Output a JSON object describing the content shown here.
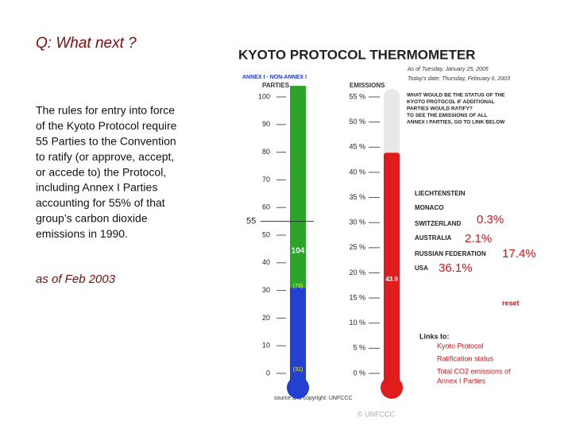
{
  "slide": {
    "question": "Q:  What next ?",
    "paragraph": [
      "The rules for entry into force",
      "of the Kyoto Protocol require",
      "55 Parties to the Convention",
      "to ratify (or approve, accept,",
      "or accede to) the Protocol,",
      "including Annex I Parties",
      "accounting for 55% of that",
      "group’s carbon dioxide",
      "emissions in 1990."
    ],
    "as_of": "as of Feb 2003"
  },
  "thermometer": {
    "title": "KYOTO PROTOCOL THERMOMETER",
    "dates": [
      "As of Tuesday, January 25, 2005",
      "Today's date: Thursday, February 6, 2003"
    ],
    "legend": "ANNEX I · NON-ANNEX I",
    "parties_label": "PARTIES",
    "emissions_label": "EMISSIONS",
    "party_ticks": [
      0,
      10,
      20,
      30,
      40,
      50,
      60,
      70,
      80,
      90,
      100
    ],
    "emission_ticks": [
      {
        "value": 0,
        "label": "0 %"
      },
      {
        "value": 5,
        "label": "5 %"
      },
      {
        "value": 10,
        "label": "10 %"
      },
      {
        "value": 15,
        "label": "15 %"
      },
      {
        "value": 20,
        "label": "20 %"
      },
      {
        "value": 25,
        "label": "25 %"
      },
      {
        "value": 30,
        "label": "30 %"
      },
      {
        "value": 35,
        "label": "35 %"
      },
      {
        "value": 40,
        "label": "40 %"
      },
      {
        "value": 45,
        "label": "45 %"
      },
      {
        "value": 50,
        "label": "50 %"
      },
      {
        "value": 55,
        "label": "55 %"
      }
    ],
    "threshold": 55,
    "parties_total": 104,
    "annex_parties": 31,
    "annex_parties_label": "(31)",
    "non_annex_parties": 73,
    "non_annex_parties_label": "(73)",
    "emissions": 43.9
  },
  "panel": {
    "question": [
      "WHAT WOULD BE THE STATUS OF THE",
      "KYOTO PROTOCOL IF ADDITIONAL",
      "PARTIES WOULD RATIFY?",
      "TO SEE THE EMISSIONS OF ALL",
      "ANNEX I PARTIES, GO TO LINK BELOW"
    ],
    "countries": [
      "LIECHTENSTEIN",
      "MONACO",
      "SWITZERLAND",
      "AUSTRALIA",
      "RUSSIAN FEDERATION",
      "USA"
    ],
    "shares": [
      {
        "value": 0.3,
        "label": "0.3%"
      },
      {
        "value": 2.1,
        "label": "2.1%"
      },
      {
        "value": 17.4,
        "label": "17.4%"
      },
      {
        "value": 36.1,
        "label": "36.1%"
      }
    ],
    "reset": "reset",
    "links_title": "Links to:",
    "links": [
      "Kyoto Protocol",
      "Ratification status",
      "Total CO2 emissions of",
      "Annex I Parties"
    ],
    "source": "source and copyright: UNFCCC",
    "copyright": "© UNFCCC"
  }
}
